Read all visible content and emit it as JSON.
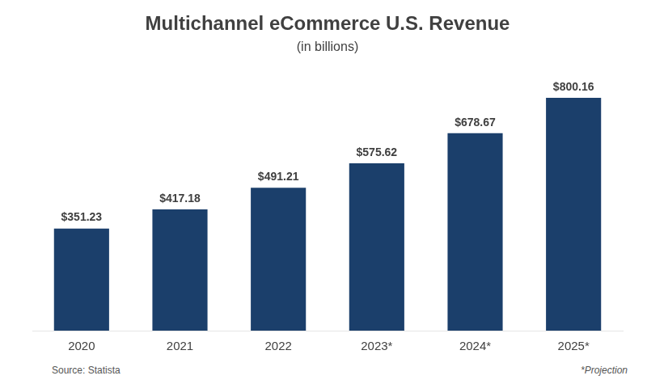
{
  "chart_data": {
    "type": "bar",
    "title": "Multichannel eCommerce U.S. Revenue",
    "subtitle": "(in billions)",
    "categories": [
      "2020",
      "2021",
      "2022",
      "2023*",
      "2024*",
      "2025*"
    ],
    "values": [
      351.23,
      417.18,
      491.21,
      575.62,
      678.67,
      800.16
    ],
    "value_labels": [
      "$351.23",
      "$417.18",
      "$491.21",
      "$575.62",
      "$678.67",
      "$800.16"
    ],
    "data_labels": true,
    "color": "#1b3f6b",
    "ylim": [
      0,
      920
    ],
    "grid": false,
    "tick_labels": "x",
    "annotations": [
      "Source: Statista",
      "*Projection"
    ]
  }
}
